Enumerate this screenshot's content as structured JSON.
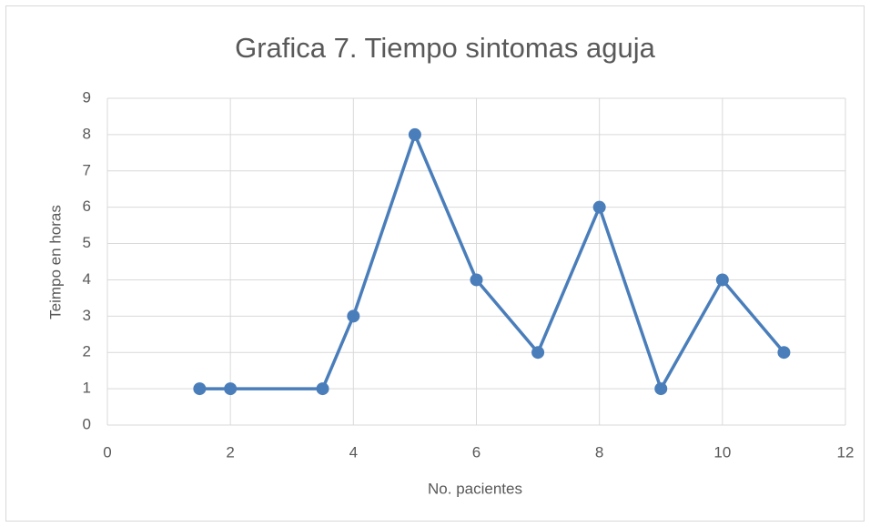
{
  "chart_data": {
    "type": "line",
    "title": "Grafica 7. Tiempo sintomas aguja",
    "x_label": "No. pacientes",
    "y_label": "Teimpo en horas",
    "x": [
      1.5,
      2,
      3.5,
      4,
      5,
      6,
      7,
      8,
      9,
      10,
      11
    ],
    "series": [
      {
        "name": "Tiempo",
        "color": "#4a7ebb",
        "values": [
          1,
          1,
          1,
          3,
          8,
          4,
          2,
          6,
          1,
          4,
          2
        ]
      }
    ],
    "xlim": [
      0,
      12
    ],
    "xticks": [
      0,
      2,
      4,
      6,
      8,
      10,
      12
    ],
    "ylim": [
      0,
      9
    ],
    "yticks": [
      0,
      1,
      2,
      3,
      4,
      5,
      6,
      7,
      8,
      9
    ],
    "grid": true
  }
}
